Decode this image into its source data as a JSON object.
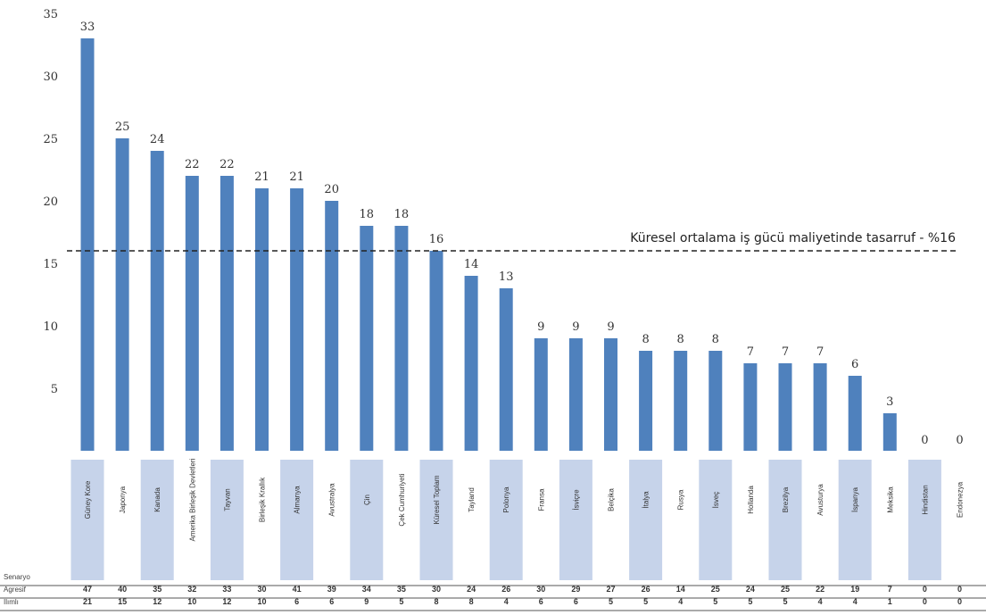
{
  "chart_data": {
    "type": "bar",
    "title": "",
    "xlabel": "",
    "ylabel": "",
    "ylim": [
      0,
      35
    ],
    "yticks": [
      5,
      10,
      15,
      20,
      25,
      30,
      35
    ],
    "grid": false,
    "legend": "none",
    "bar_color": "#4f81bd",
    "band_color": "#c6d3ea",
    "categories": [
      "Güney Kore",
      "Japonya",
      "Kanada",
      "Amerika Birleşik Devletleri",
      "Tayvan",
      "Birleşik Krallık",
      "Almanya",
      "Avustralya",
      "Çin",
      "Çek Cumhuriyeti",
      "Küresel Toplam",
      "Tayland",
      "Polonya",
      "Fransa",
      "İsviçre",
      "Belçika",
      "İtalya",
      "Rusya",
      "İsveç",
      "Hollanda",
      "Brezilya",
      "Avusturya",
      "İspanya",
      "Meksika",
      "Hindistan",
      "Endonezya"
    ],
    "values": [
      33,
      25,
      24,
      22,
      22,
      21,
      21,
      20,
      18,
      18,
      16,
      14,
      13,
      9,
      9,
      9,
      8,
      8,
      8,
      7,
      7,
      7,
      6,
      3,
      0,
      0
    ],
    "reference_line": {
      "value": 16,
      "label": "Küresel ortalama iş gücü maliyetinde tasarruf - %16",
      "style": "dashed"
    },
    "table_rows": [
      {
        "label": "Senaryo",
        "values": []
      },
      {
        "label": "Agresif",
        "values": [
          47,
          40,
          35,
          32,
          33,
          30,
          41,
          39,
          34,
          35,
          30,
          24,
          26,
          30,
          29,
          27,
          26,
          14,
          25,
          24,
          25,
          22,
          19,
          7,
          0,
          0
        ]
      },
      {
        "label": "Ilımlı",
        "values": [
          21,
          15,
          12,
          10,
          12,
          10,
          6,
          6,
          9,
          5,
          8,
          8,
          4,
          6,
          6,
          5,
          5,
          4,
          5,
          5,
          5,
          4,
          4,
          1,
          0,
          0
        ]
      }
    ]
  }
}
